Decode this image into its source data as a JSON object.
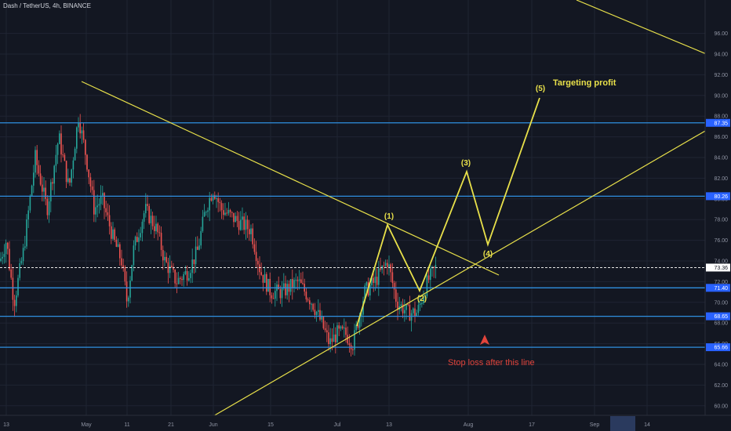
{
  "header": {
    "title": "Dash / TetherUS, 4h, BINANCE"
  },
  "colors": {
    "background": "#131722",
    "grid": "#1f2433",
    "up": "#26a69a",
    "down": "#ef5350",
    "annotation": "#e8e04a",
    "hline": "#2f8fe0",
    "price_tag": "#2962ff",
    "stop_text": "#e2443b"
  },
  "chart_data": {
    "type": "candlestick",
    "symbol": "Dash / TetherUS",
    "interval": "4h",
    "exchange": "BINANCE",
    "y_range": [
      56.5,
      96.8
    ],
    "y_ticks": [
      58,
      60,
      62,
      64,
      66,
      68,
      70,
      72,
      74,
      76,
      78,
      80,
      82,
      84,
      86,
      88,
      90,
      92,
      94,
      96
    ],
    "y_tick_labels": [
      "58.00",
      "60.00",
      "62.00",
      "64.00",
      "66.00",
      "68.00",
      "70.00",
      "72.00",
      "74.00",
      "76.00",
      "78.00",
      "80.00",
      "82.00",
      "84.00",
      "86.00",
      "88.00",
      "90.00",
      "92.00",
      "94.00",
      "96.00"
    ],
    "x_labels": [
      "13",
      "May",
      "11",
      "21",
      "Jun",
      "15",
      "Jul",
      "13",
      "Aug",
      "17",
      "Sep",
      "14"
    ],
    "last_price": {
      "value": 73.36,
      "label": "73.36"
    },
    "horizontal_levels": [
      {
        "value": 87.35,
        "label": "87.35"
      },
      {
        "value": 80.26,
        "label": "80.26"
      },
      {
        "value": 71.4,
        "label": "71.40"
      },
      {
        "value": 68.65,
        "label": "68.65"
      },
      {
        "value": 65.66,
        "label": "65.66"
      }
    ],
    "wave_labels": [
      "(1)",
      "(2)",
      "(3)",
      "(4)",
      "(5)"
    ],
    "annotations": {
      "target": "Targeting profit",
      "stop": "Stop loss after this line"
    }
  }
}
